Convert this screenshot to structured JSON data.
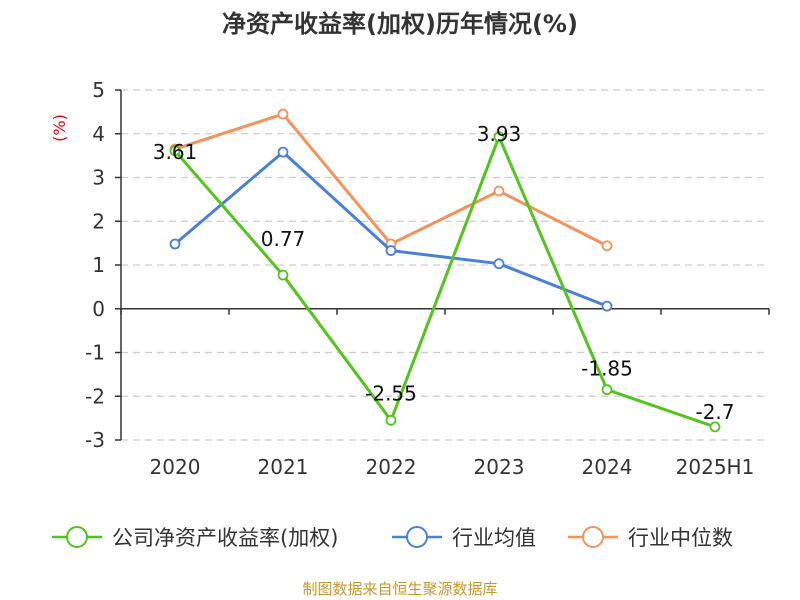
{
  "chart_data": {
    "type": "line",
    "title": "净资产收益率(加权)历年情况(%)",
    "ylabel": "(%)",
    "categories": [
      "2020",
      "2021",
      "2022",
      "2023",
      "2024",
      "2025H1"
    ],
    "ylim": [
      -3,
      5
    ],
    "yticks": [
      5,
      4,
      3,
      2,
      1,
      0,
      -1,
      -2,
      -3
    ],
    "grid": true,
    "legend_position": "bottom",
    "series": [
      {
        "name": "公司净资产收益率(加权)",
        "color": "#52c41a",
        "values": [
          3.61,
          0.77,
          -2.55,
          3.93,
          -1.85,
          -2.7
        ],
        "labels": [
          "3.61",
          "0.77",
          "-2.55",
          "3.93",
          "-1.85",
          "-2.7"
        ]
      },
      {
        "name": "行业均值",
        "color": "#4a7fd6",
        "values": [
          1.48,
          3.58,
          1.33,
          1.03,
          0.06,
          null
        ]
      },
      {
        "name": "行业中位数",
        "color": "#f5915a",
        "values": [
          3.65,
          4.45,
          1.48,
          2.69,
          1.44,
          null
        ]
      }
    ]
  },
  "source_text": "制图数据来自恒生聚源数据库"
}
